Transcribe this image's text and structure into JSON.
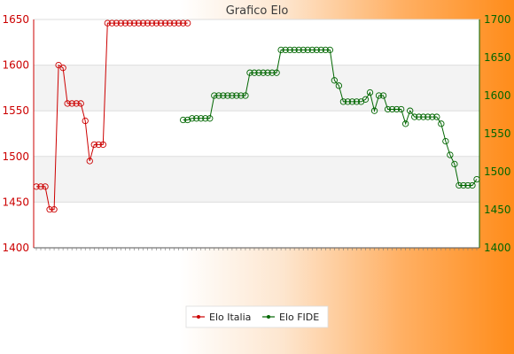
{
  "chart_data": {
    "type": "line",
    "title": "Grafico Elo",
    "xlabel": "",
    "ylabel": "",
    "y_left": {
      "ticks": [
        1400,
        1450,
        1500,
        1550,
        1600,
        1650
      ],
      "range": [
        1400,
        1650
      ],
      "color": "#cc0000"
    },
    "y_right": {
      "ticks": [
        1400,
        1450,
        1500,
        1550,
        1600,
        1650,
        1700
      ],
      "range": [
        1400,
        1700
      ],
      "color": "#006600"
    },
    "grid": true,
    "legend_position": "bottom-center",
    "x_count": 100,
    "series": [
      {
        "name": "Elo Italia",
        "axis": "left",
        "color": "#cc0000",
        "points": [
          [
            0,
            1467
          ],
          [
            1,
            1467
          ],
          [
            2,
            1467
          ],
          [
            3,
            1442
          ],
          [
            4,
            1442
          ],
          [
            5,
            1600
          ],
          [
            6,
            1597
          ],
          [
            7,
            1558
          ],
          [
            8,
            1558
          ],
          [
            9,
            1558
          ],
          [
            10,
            1558
          ],
          [
            11,
            1539
          ],
          [
            12,
            1495
          ],
          [
            13,
            1513
          ],
          [
            14,
            1513
          ],
          [
            15,
            1513
          ],
          [
            16,
            1646
          ],
          [
            17,
            1646
          ],
          [
            18,
            1646
          ],
          [
            19,
            1646
          ],
          [
            20,
            1646
          ],
          [
            21,
            1646
          ],
          [
            22,
            1646
          ],
          [
            23,
            1646
          ],
          [
            24,
            1646
          ],
          [
            25,
            1646
          ],
          [
            26,
            1646
          ],
          [
            27,
            1646
          ],
          [
            28,
            1646
          ],
          [
            29,
            1646
          ],
          [
            30,
            1646
          ],
          [
            31,
            1646
          ],
          [
            32,
            1646
          ],
          [
            33,
            1646
          ],
          [
            34,
            1646
          ]
        ]
      },
      {
        "name": "Elo FIDE",
        "axis": "right",
        "color": "#006600",
        "points": [
          [
            33,
            1568
          ],
          [
            34,
            1568
          ],
          [
            35,
            1570
          ],
          [
            36,
            1570
          ],
          [
            37,
            1570
          ],
          [
            38,
            1570
          ],
          [
            39,
            1570
          ],
          [
            40,
            1600
          ],
          [
            41,
            1600
          ],
          [
            42,
            1600
          ],
          [
            43,
            1600
          ],
          [
            44,
            1600
          ],
          [
            45,
            1600
          ],
          [
            46,
            1600
          ],
          [
            47,
            1600
          ],
          [
            48,
            1630
          ],
          [
            49,
            1630
          ],
          [
            50,
            1630
          ],
          [
            51,
            1630
          ],
          [
            52,
            1630
          ],
          [
            53,
            1630
          ],
          [
            54,
            1630
          ],
          [
            55,
            1660
          ],
          [
            56,
            1660
          ],
          [
            57,
            1660
          ],
          [
            58,
            1660
          ],
          [
            59,
            1660
          ],
          [
            60,
            1660
          ],
          [
            61,
            1660
          ],
          [
            62,
            1660
          ],
          [
            63,
            1660
          ],
          [
            64,
            1660
          ],
          [
            65,
            1660
          ],
          [
            66,
            1660
          ],
          [
            67,
            1620
          ],
          [
            68,
            1613
          ],
          [
            69,
            1592
          ],
          [
            70,
            1592
          ],
          [
            71,
            1592
          ],
          [
            72,
            1592
          ],
          [
            73,
            1592
          ],
          [
            74,
            1595
          ],
          [
            75,
            1604
          ],
          [
            76,
            1580
          ],
          [
            77,
            1600
          ],
          [
            78,
            1600
          ],
          [
            79,
            1582
          ],
          [
            80,
            1582
          ],
          [
            81,
            1582
          ],
          [
            82,
            1582
          ],
          [
            83,
            1563
          ],
          [
            84,
            1580
          ],
          [
            85,
            1572
          ],
          [
            86,
            1572
          ],
          [
            87,
            1572
          ],
          [
            88,
            1572
          ],
          [
            89,
            1572
          ],
          [
            90,
            1572
          ],
          [
            91,
            1563
          ],
          [
            92,
            1540
          ],
          [
            93,
            1522
          ],
          [
            94,
            1510
          ],
          [
            95,
            1482
          ],
          [
            96,
            1482
          ],
          [
            97,
            1482
          ],
          [
            98,
            1482
          ],
          [
            99,
            1490
          ]
        ]
      }
    ]
  }
}
